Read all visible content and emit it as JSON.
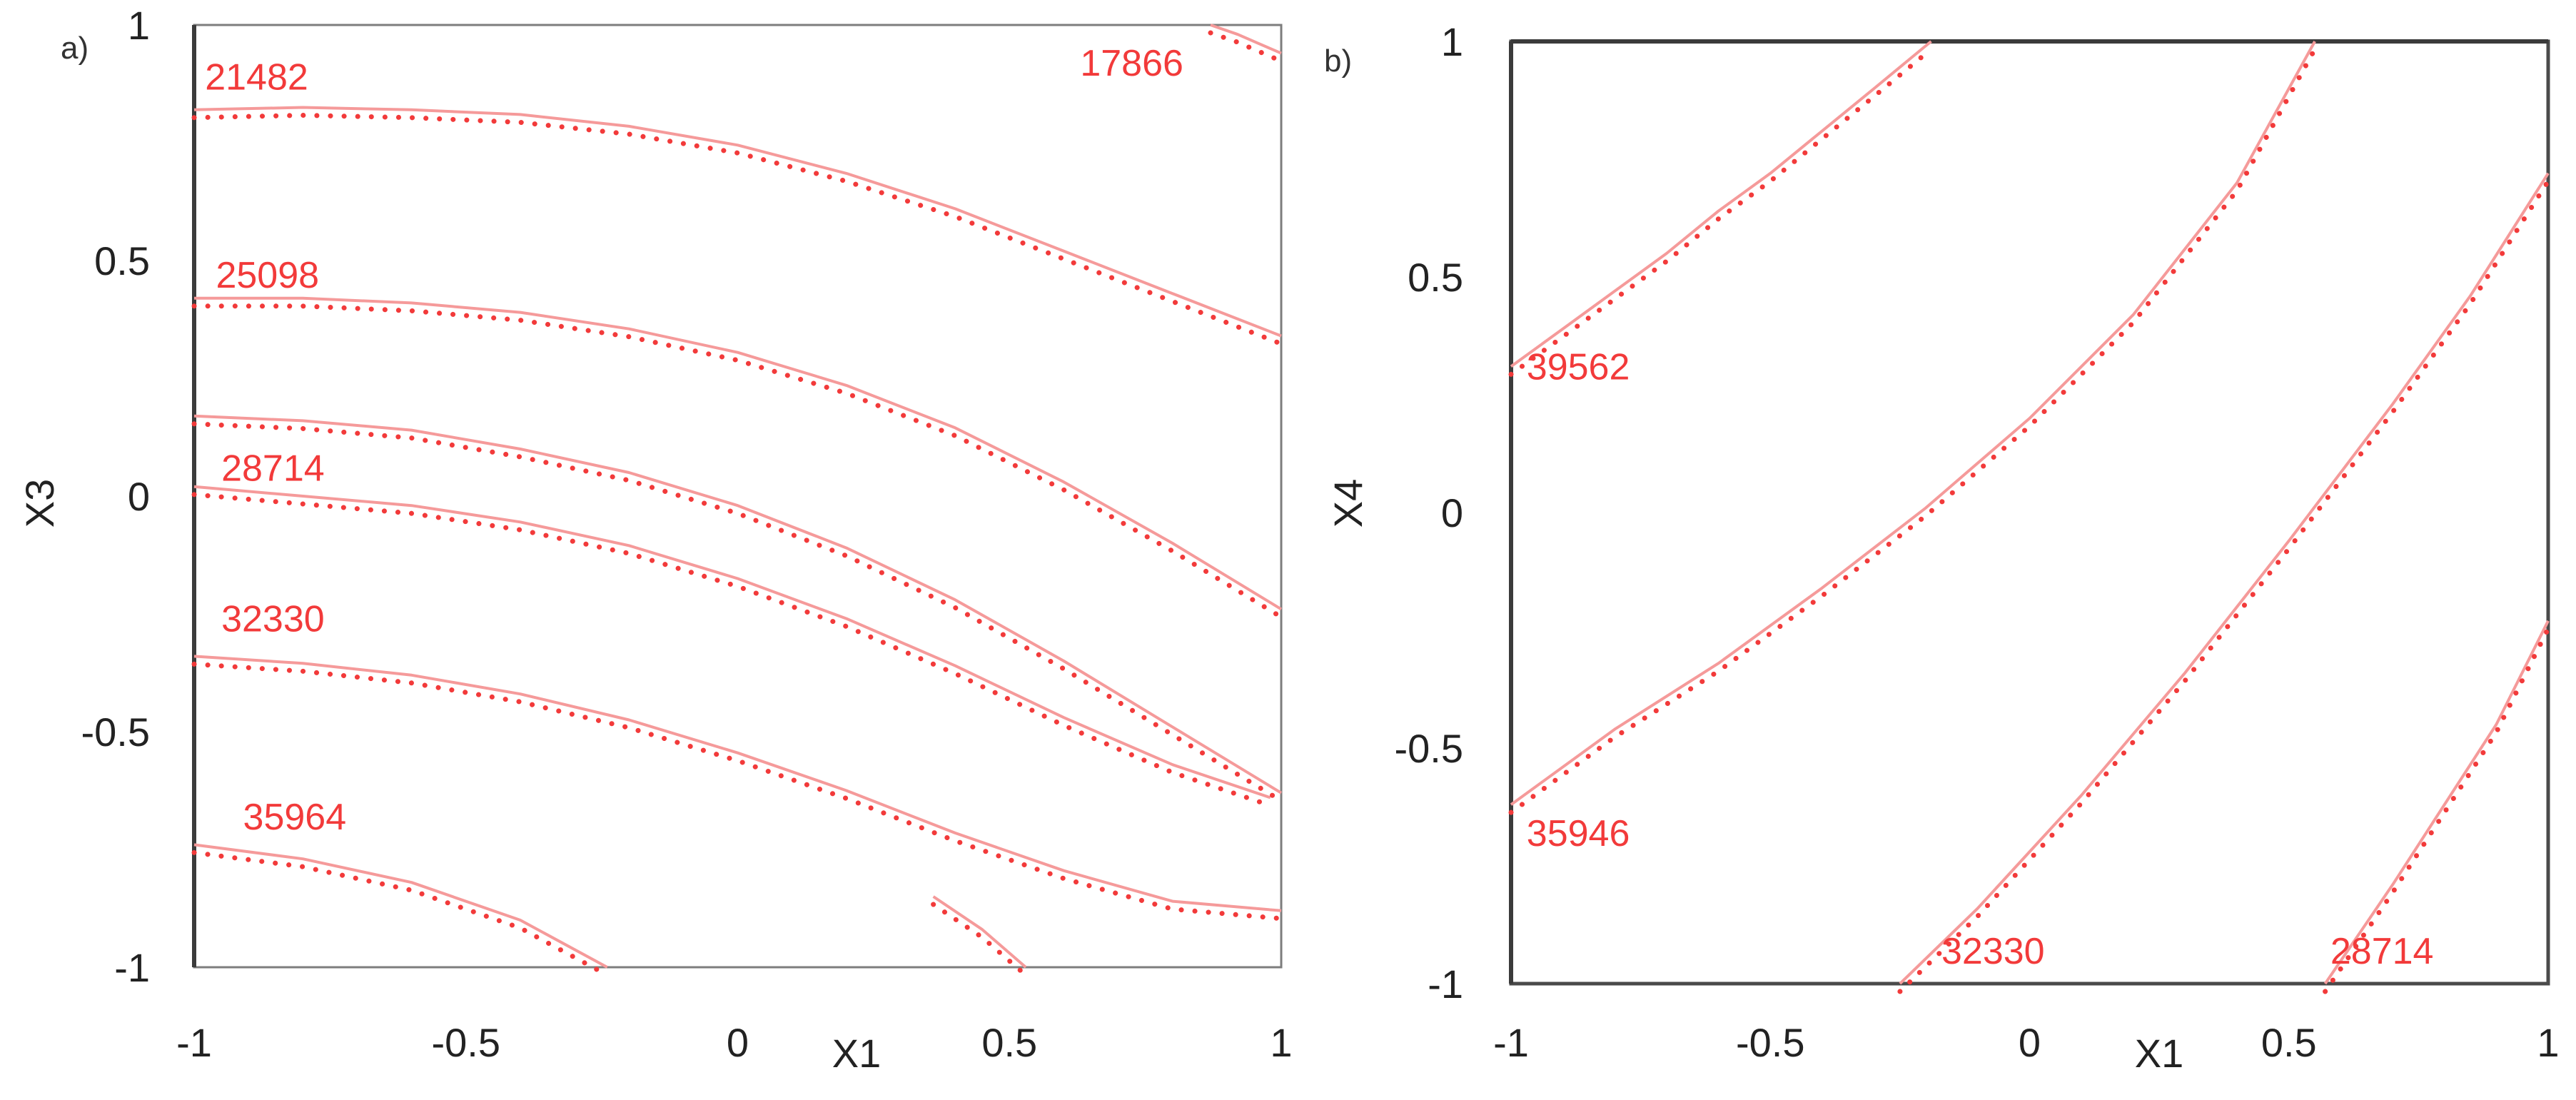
{
  "chart_data": [
    {
      "panel_label": "a)",
      "type": "contour",
      "xlabel": "X1",
      "ylabel": "X3",
      "xlim": [
        -1,
        1
      ],
      "ylim": [
        -1,
        1
      ],
      "xticks": [
        {
          "value": -1,
          "label": "-1"
        },
        {
          "value": -0.5,
          "label": "-0.5"
        },
        {
          "value": 0,
          "label": "0"
        },
        {
          "value": 0.5,
          "label": "0.5"
        },
        {
          "value": 1,
          "label": "1"
        }
      ],
      "yticks": [
        {
          "value": -1,
          "label": "-1"
        },
        {
          "value": -0.5,
          "label": "-0.5"
        },
        {
          "value": 0,
          "label": "0"
        },
        {
          "value": 0.5,
          "label": "0.5"
        },
        {
          "value": 1,
          "label": "1"
        }
      ],
      "contours": [
        {
          "level": "17866",
          "points": [
            [
              0.87,
              1.0
            ],
            [
              0.92,
              0.98
            ],
            [
              0.96,
              0.96
            ],
            [
              1.0,
              0.94
            ]
          ],
          "label_at": [
            0.82,
            0.92
          ],
          "label_anchor": "end"
        },
        {
          "level": "21482",
          "points": [
            [
              -1.0,
              0.82
            ],
            [
              -0.8,
              0.825
            ],
            [
              -0.6,
              0.82
            ],
            [
              -0.4,
              0.81
            ],
            [
              -0.2,
              0.785
            ],
            [
              0.0,
              0.745
            ],
            [
              0.2,
              0.685
            ],
            [
              0.4,
              0.61
            ],
            [
              0.6,
              0.52
            ],
            [
              0.8,
              0.43
            ],
            [
              1.0,
              0.34
            ]
          ],
          "label_at": [
            -0.98,
            0.89
          ],
          "label_anchor": "start"
        },
        {
          "level": "25098",
          "points": [
            [
              -1.0,
              0.42
            ],
            [
              -0.8,
              0.42
            ],
            [
              -0.6,
              0.41
            ],
            [
              -0.4,
              0.39
            ],
            [
              -0.2,
              0.355
            ],
            [
              0.0,
              0.305
            ],
            [
              0.2,
              0.235
            ],
            [
              0.4,
              0.145
            ],
            [
              0.6,
              0.03
            ],
            [
              0.8,
              -0.1
            ],
            [
              1.0,
              -0.24
            ]
          ],
          "label_at": [
            -0.96,
            0.47
          ],
          "label_anchor": "start"
        },
        {
          "level": "28714",
          "points": [
            [
              -1.0,
              0.02
            ],
            [
              -0.8,
              0.0
            ],
            [
              -0.6,
              -0.02
            ],
            [
              -0.4,
              -0.055
            ],
            [
              -0.2,
              -0.105
            ],
            [
              0.0,
              -0.175
            ],
            [
              0.2,
              -0.26
            ],
            [
              0.4,
              -0.36
            ],
            [
              0.6,
              -0.47
            ],
            [
              0.8,
              -0.57
            ],
            [
              0.98,
              -0.64
            ]
          ],
          "label_at": [
            -0.95,
            0.06
          ],
          "label_anchor": "start"
        },
        {
          "level": "",
          "points": [
            [
              -1.0,
              0.17
            ],
            [
              -0.8,
              0.16
            ],
            [
              -0.6,
              0.14
            ],
            [
              -0.4,
              0.1
            ],
            [
              -0.2,
              0.05
            ],
            [
              0.0,
              -0.02
            ],
            [
              0.2,
              -0.11
            ],
            [
              0.4,
              -0.22
            ],
            [
              0.6,
              -0.35
            ],
            [
              0.8,
              -0.49
            ],
            [
              1.0,
              -0.63
            ]
          ],
          "label_at": null,
          "label_anchor": "start"
        },
        {
          "level": "32330",
          "points": [
            [
              -1.0,
              -0.34
            ],
            [
              -0.8,
              -0.355
            ],
            [
              -0.6,
              -0.38
            ],
            [
              -0.4,
              -0.42
            ],
            [
              -0.2,
              -0.475
            ],
            [
              0.0,
              -0.545
            ],
            [
              0.2,
              -0.625
            ],
            [
              0.4,
              -0.715
            ],
            [
              0.6,
              -0.795
            ],
            [
              0.8,
              -0.86
            ],
            [
              1.0,
              -0.88
            ]
          ],
          "label_at": [
            -0.95,
            -0.26
          ],
          "label_anchor": "start"
        },
        {
          "level": "35964",
          "points": [
            [
              -1.0,
              -0.74
            ],
            [
              -0.8,
              -0.77
            ],
            [
              -0.6,
              -0.82
            ],
            [
              -0.4,
              -0.9
            ],
            [
              -0.24,
              -1.0
            ]
          ],
          "label_at": [
            -0.91,
            -0.68
          ],
          "label_anchor": "start"
        },
        {
          "level": "",
          "points": [
            [
              0.36,
              -0.85
            ],
            [
              0.45,
              -0.92
            ],
            [
              0.53,
              -1.0
            ]
          ],
          "label_at": null,
          "label_anchor": "start"
        }
      ]
    },
    {
      "panel_label": "b)",
      "type": "contour",
      "xlabel": "X1",
      "ylabel": "X4",
      "xlim": [
        -1,
        1
      ],
      "ylim": [
        -1,
        1
      ],
      "xticks": [
        {
          "value": -1,
          "label": "-1"
        },
        {
          "value": -0.5,
          "label": "-0.5"
        },
        {
          "value": 0,
          "label": "0"
        },
        {
          "value": 0.5,
          "label": "0.5"
        },
        {
          "value": 1,
          "label": "1"
        }
      ],
      "yticks": [
        {
          "value": -1,
          "label": "-1"
        },
        {
          "value": -0.5,
          "label": "-0.5"
        },
        {
          "value": 0,
          "label": "0"
        },
        {
          "value": 0.5,
          "label": "0.5"
        },
        {
          "value": 1,
          "label": "1"
        }
      ],
      "contours": [
        {
          "level": "39562",
          "points": [
            [
              -1.0,
              0.31
            ],
            [
              -0.9,
              0.39
            ],
            [
              -0.8,
              0.47
            ],
            [
              -0.7,
              0.55
            ],
            [
              -0.6,
              0.64
            ],
            [
              -0.5,
              0.72
            ],
            [
              -0.4,
              0.81
            ],
            [
              -0.3,
              0.9
            ],
            [
              -0.19,
              1.0
            ]
          ],
          "label_at": [
            -0.97,
            0.31
          ],
          "label_anchor": "start"
        },
        {
          "level": "35946",
          "points": [
            [
              -1.0,
              -0.62
            ],
            [
              -0.8,
              -0.46
            ],
            [
              -0.6,
              -0.32
            ],
            [
              -0.4,
              -0.16
            ],
            [
              -0.2,
              0.01
            ],
            [
              0.0,
              0.2
            ],
            [
              0.2,
              0.42
            ],
            [
              0.4,
              0.7
            ],
            [
              0.55,
              1.0
            ]
          ],
          "label_at": [
            -0.97,
            -0.68
          ],
          "label_anchor": "start"
        },
        {
          "level": "32330",
          "points": [
            [
              -0.25,
              -1.0
            ],
            [
              -0.1,
              -0.84
            ],
            [
              0.1,
              -0.6
            ],
            [
              0.3,
              -0.34
            ],
            [
              0.5,
              -0.06
            ],
            [
              0.7,
              0.23
            ],
            [
              0.85,
              0.46
            ],
            [
              1.0,
              0.72
            ]
          ],
          "label_at": [
            -0.17,
            -0.93
          ],
          "label_anchor": "start"
        },
        {
          "level": "28714",
          "points": [
            [
              0.57,
              -1.0
            ],
            [
              0.7,
              -0.79
            ],
            [
              0.8,
              -0.62
            ],
            [
              0.9,
              -0.45
            ],
            [
              1.0,
              -0.23
            ]
          ],
          "label_at": [
            0.58,
            -0.93
          ],
          "label_anchor": "start"
        }
      ]
    }
  ]
}
